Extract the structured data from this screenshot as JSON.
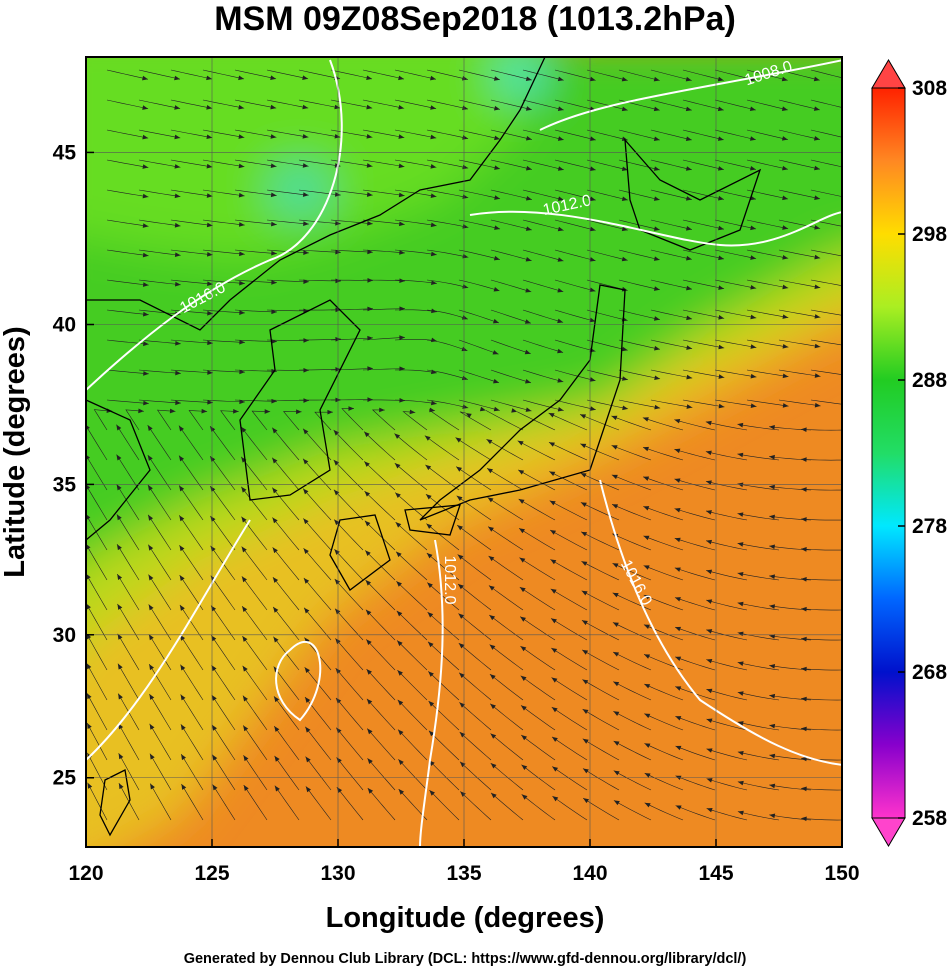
{
  "header": {
    "title": "MSM 09Z08Sep2018 (1013.2hPa)"
  },
  "map": {
    "xlabel": "Longitude (degrees)",
    "ylabel": "Latitude  (degrees)",
    "xlim": [
      120,
      150
    ],
    "ylim": [
      22.5,
      47.6
    ],
    "xticks": [
      120,
      125,
      130,
      135,
      140,
      145,
      150
    ],
    "yticks": [
      25,
      30,
      35,
      40,
      45
    ]
  },
  "colorbar": {
    "lim": [
      258,
      308
    ],
    "ticks": [
      258,
      268,
      278,
      288,
      298,
      308
    ]
  },
  "contour_labels": [
    "1008.0",
    "1012.0",
    "1016.0",
    "1012.0",
    "1016.0"
  ],
  "footer": "Generated by Dennou Club Library (DCL: https://www.gfd-dennou.org/library/dcl/)"
}
